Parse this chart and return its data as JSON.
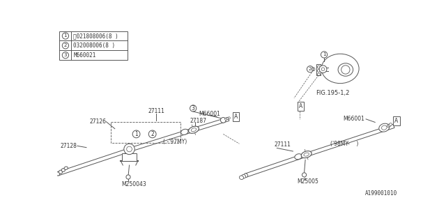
{
  "bg_color": "#ffffff",
  "line_color": "#555555",
  "text_color": "#333333",
  "part_number_bottom": "A199001010",
  "table_rows": [
    [
      "1",
      "Ⓝ021808006(8 )"
    ],
    [
      "2",
      "032008006(8 )"
    ],
    [
      "3",
      "M660021"
    ]
  ],
  "fig_ref": "FIG.195-1,2"
}
